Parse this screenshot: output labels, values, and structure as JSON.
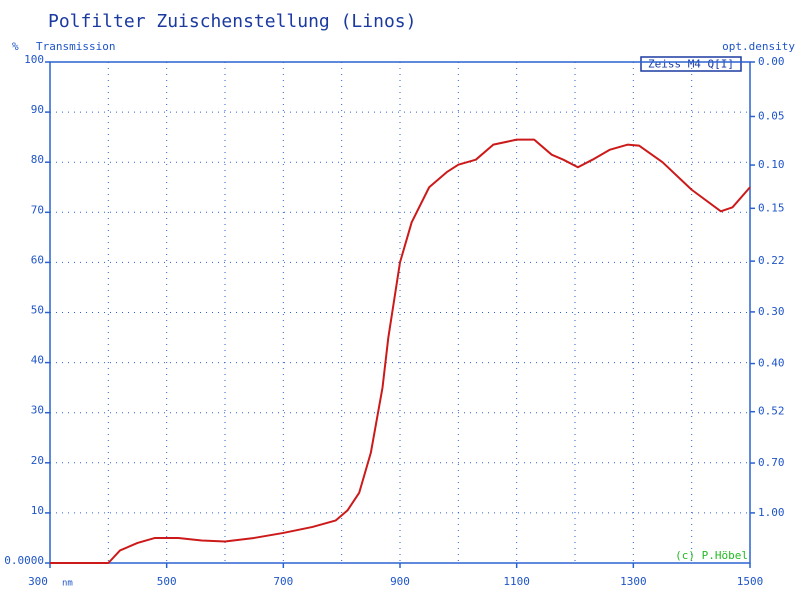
{
  "chart_data": {
    "type": "line",
    "title": "Polfilter Zuischenstellung (Linos)",
    "y_unit": "%",
    "ylabel": "Transmission",
    "y2label": "opt.density",
    "x_unit": "nm",
    "legend_label": "Zeiss M4 Q[I]",
    "credit": "(c) P.Höbel",
    "x": [
      300,
      400,
      420,
      450,
      480,
      520,
      560,
      600,
      650,
      700,
      750,
      790,
      810,
      830,
      850,
      870,
      880,
      900,
      920,
      950,
      980,
      1000,
      1030,
      1060,
      1100,
      1130,
      1160,
      1180,
      1205,
      1230,
      1260,
      1290,
      1310,
      1350,
      1400,
      1450,
      1470,
      1500
    ],
    "series": [
      {
        "name": "Zeiss M4 Q[I]",
        "color": "#cc1a1a",
        "values": [
          0,
          0,
          2.5,
          4,
          5,
          5,
          4.5,
          4.3,
          5,
          6,
          7.2,
          8.5,
          10.5,
          14,
          22,
          35,
          45,
          60,
          68,
          75,
          78,
          79.5,
          80.5,
          83.5,
          84.5,
          84.5,
          81.5,
          80.5,
          79,
          80.5,
          82.5,
          83.5,
          83.3,
          80,
          74.5,
          70.2,
          71,
          75
        ]
      }
    ],
    "xlim": [
      300,
      1500
    ],
    "xticks": [
      300,
      500,
      700,
      900,
      1100,
      1300,
      1500
    ],
    "xgrid": [
      400,
      500,
      600,
      700,
      800,
      900,
      1000,
      1100,
      1200,
      1300,
      1400
    ],
    "ylim": [
      0,
      100
    ],
    "yticks": [
      {
        "value": 0,
        "label": "0.0000"
      },
      10,
      20,
      30,
      40,
      50,
      60,
      70,
      80,
      90,
      100
    ],
    "y2scale": "density",
    "y2ticks": [
      {
        "value": 0,
        "label": "0.00"
      },
      0.05,
      {
        "value": 0.1,
        "label": "0.10"
      },
      0.15,
      0.22,
      {
        "value": 0.3,
        "label": "0.30"
      },
      {
        "value": 0.4,
        "label": "0.40"
      },
      0.52,
      {
        "value": 0.7,
        "label": "0.70"
      },
      {
        "value": 1,
        "label": "1.00"
      }
    ],
    "grid": true
  }
}
